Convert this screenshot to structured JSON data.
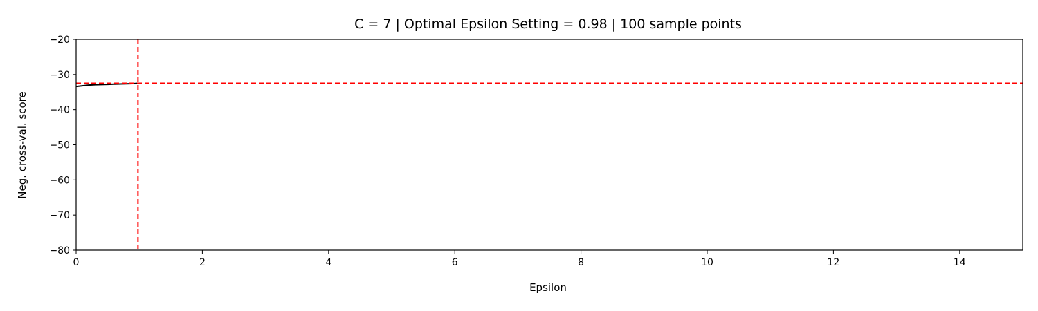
{
  "chart_data": {
    "type": "line",
    "title": "C = 7 | Optimal Epsilon Setting = 0.98 | 100 sample points",
    "xlabel": "Epsilon",
    "ylabel": "Neg. cross-val. score",
    "xlim": [
      0,
      15
    ],
    "ylim": [
      -80,
      -20
    ],
    "xticks": [
      0,
      2,
      4,
      6,
      8,
      10,
      12,
      14
    ],
    "xtick_labels": [
      "0",
      "2",
      "4",
      "6",
      "8",
      "10",
      "12",
      "14"
    ],
    "yticks": [
      -80,
      -70,
      -60,
      -50,
      -40,
      -30,
      -20
    ],
    "ytick_labels": [
      "−80",
      "−70",
      "−60",
      "−50",
      "−40",
      "−30",
      "−20"
    ],
    "grid": false,
    "series": [
      {
        "color": "#000000",
        "x": [
          0.0,
          0.1,
          0.2,
          0.3,
          0.4,
          0.5,
          0.6,
          0.7,
          0.8,
          0.9,
          0.98
        ],
        "y": [
          -33.4,
          -33.2,
          -33.0,
          -32.9,
          -32.85,
          -32.8,
          -32.75,
          -32.7,
          -32.65,
          -32.6,
          -32.5
        ]
      }
    ],
    "reference_lines": [
      {
        "orientation": "vertical",
        "value": 0.98,
        "color": "#ff0000",
        "style": "dashed"
      },
      {
        "orientation": "horizontal",
        "value": -32.5,
        "color": "#ff0000",
        "style": "dashed"
      }
    ]
  }
}
